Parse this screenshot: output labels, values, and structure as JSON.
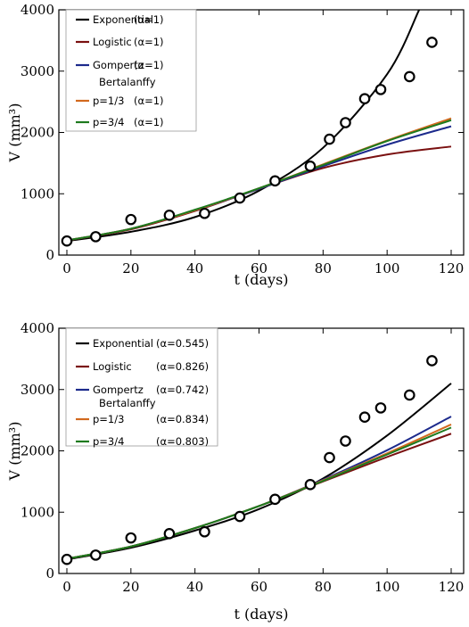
{
  "chart_data": [
    {
      "type": "line",
      "title": "",
      "xlabel": "t (days)",
      "ylabel": "V (mm³)",
      "xlim": [
        0,
        120
      ],
      "ylim": [
        0,
        4000
      ],
      "xticks": [
        "0",
        "20",
        "40",
        "60",
        "80",
        "100",
        "120"
      ],
      "yticks": [
        "0",
        "1000",
        "2000",
        "3000",
        "4000"
      ],
      "grid": false,
      "legend_position": "top-left",
      "observed": {
        "x": [
          0,
          9,
          20,
          32,
          43,
          54,
          65,
          76,
          82,
          87,
          93,
          98,
          107,
          114
        ],
        "y": [
          230,
          300,
          580,
          650,
          680,
          930,
          1210,
          1450,
          1890,
          2160,
          2550,
          2700,
          2910,
          3470
        ]
      },
      "series": [
        {
          "name": "Exponential",
          "param": "(α=1)",
          "color": "#000000",
          "x": [
            0,
            20,
            40,
            60,
            80,
            100,
            110
          ],
          "y": [
            230,
            380,
            620,
            1050,
            1750,
            2950,
            4000
          ]
        },
        {
          "name": "Logistic",
          "param": "(α=1)",
          "color": "#7a1010",
          "x": [
            0,
            20,
            40,
            60,
            80,
            100,
            120
          ],
          "y": [
            240,
            420,
            720,
            1080,
            1420,
            1640,
            1770
          ]
        },
        {
          "name": "Gompertz",
          "param": "(α=1)",
          "color": "#1c2a8c",
          "x": [
            0,
            20,
            40,
            60,
            80,
            100,
            120
          ],
          "y": [
            240,
            430,
            730,
            1080,
            1450,
            1800,
            2100
          ]
        },
        {
          "name": "p=1/3",
          "param": "(α=1)",
          "color": "#d2691e",
          "x": [
            0,
            20,
            40,
            60,
            80,
            100,
            120
          ],
          "y": [
            240,
            430,
            730,
            1090,
            1480,
            1870,
            2230
          ]
        },
        {
          "name": "p=3/4",
          "param": "(α=1)",
          "color": "#1e7a1e",
          "x": [
            0,
            20,
            40,
            60,
            80,
            100,
            120
          ],
          "y": [
            240,
            430,
            740,
            1090,
            1470,
            1860,
            2200
          ]
        }
      ],
      "legend_heading": "Bertalanffy"
    },
    {
      "type": "line",
      "title": "",
      "xlabel": "t (days)",
      "ylabel": "V (mm³)",
      "xlim": [
        0,
        120
      ],
      "ylim": [
        0,
        4000
      ],
      "xticks": [
        "0",
        "20",
        "40",
        "60",
        "80",
        "100",
        "120"
      ],
      "yticks": [
        "0",
        "1000",
        "2000",
        "3000",
        "4000"
      ],
      "grid": false,
      "legend_position": "top-left",
      "observed": {
        "x": [
          0,
          9,
          20,
          32,
          43,
          54,
          65,
          76,
          82,
          87,
          93,
          98,
          107,
          114
        ],
        "y": [
          230,
          300,
          580,
          650,
          680,
          930,
          1210,
          1450,
          1890,
          2160,
          2550,
          2700,
          2910,
          3470
        ]
      },
      "series": [
        {
          "name": "Exponential",
          "param": "(α=0.545)",
          "color": "#000000",
          "x": [
            0,
            20,
            40,
            60,
            80,
            100,
            120
          ],
          "y": [
            230,
            420,
            700,
            1050,
            1550,
            2250,
            3100
          ]
        },
        {
          "name": "Logistic",
          "param": "(α=0.826)",
          "color": "#7a1010",
          "x": [
            0,
            20,
            40,
            60,
            80,
            100,
            120
          ],
          "y": [
            240,
            440,
            740,
            1100,
            1500,
            1900,
            2280
          ]
        },
        {
          "name": "Gompertz",
          "param": "(α=0.742)",
          "color": "#1c2a8c",
          "x": [
            0,
            20,
            40,
            60,
            80,
            100,
            120
          ],
          "y": [
            240,
            440,
            740,
            1100,
            1530,
            2010,
            2560
          ]
        },
        {
          "name": "p=1/3",
          "param": "(α=0.834)",
          "color": "#d2691e",
          "x": [
            0,
            20,
            40,
            60,
            80,
            100,
            120
          ],
          "y": [
            240,
            440,
            740,
            1100,
            1520,
            1960,
            2430
          ]
        },
        {
          "name": "p=3/4",
          "param": "(α=0.803)",
          "color": "#1e7a1e",
          "x": [
            0,
            20,
            40,
            60,
            80,
            100,
            120
          ],
          "y": [
            240,
            440,
            740,
            1100,
            1510,
            1940,
            2380
          ]
        }
      ],
      "legend_heading": "Bertalanffy"
    }
  ]
}
